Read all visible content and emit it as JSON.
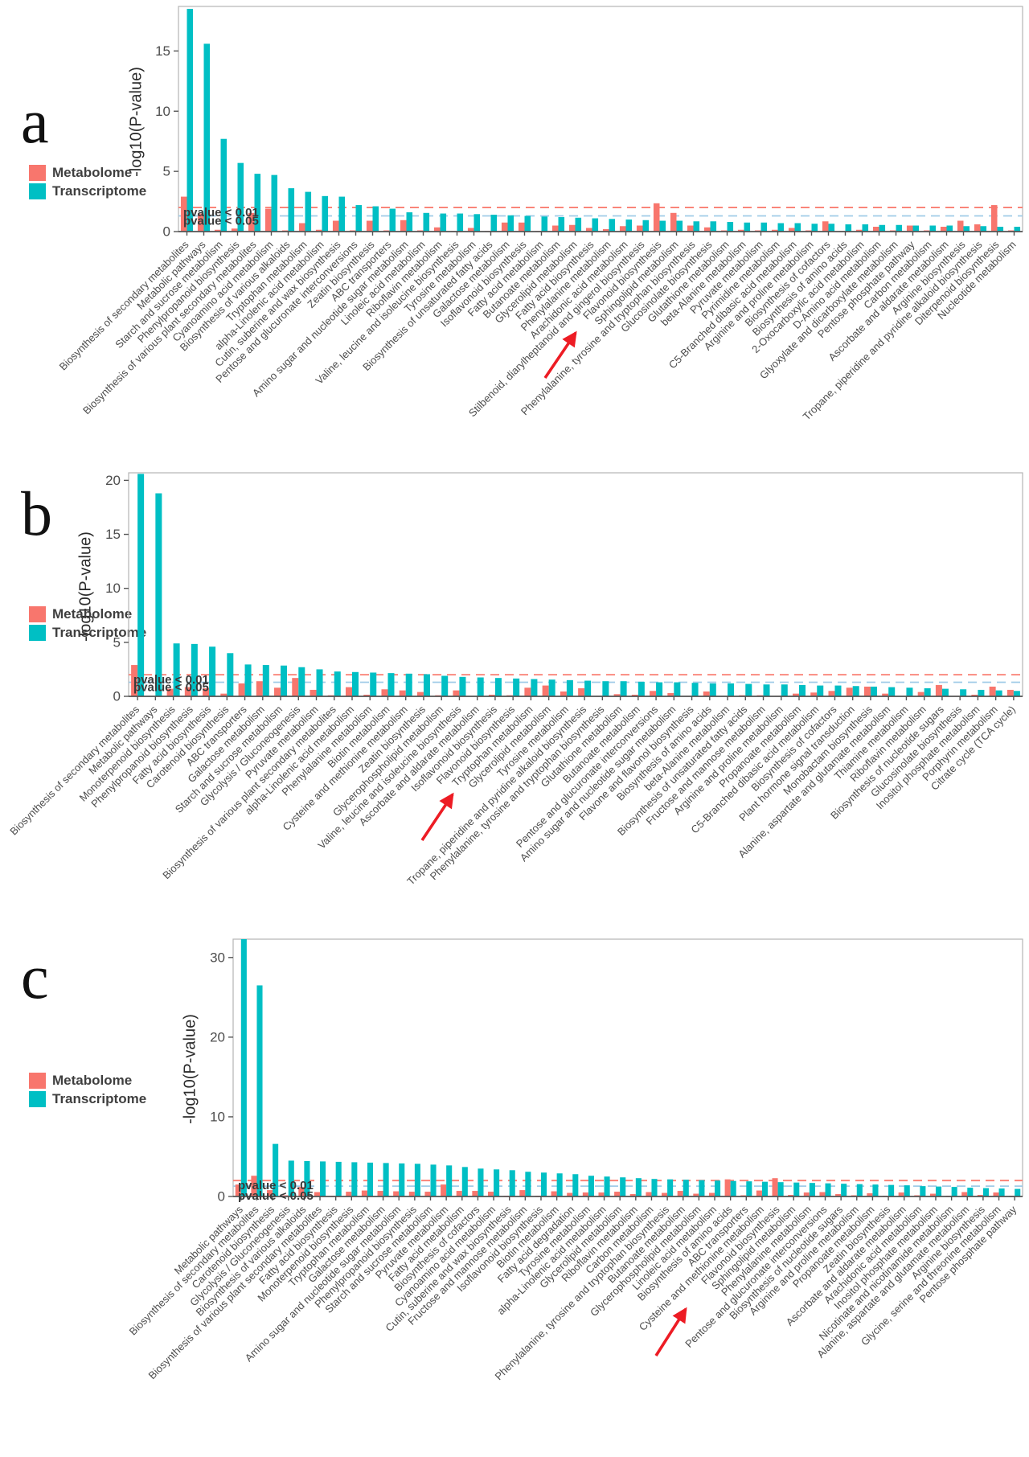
{
  "figure": {
    "background": "#ffffff"
  },
  "colors": {
    "metabolome": "#F8766D",
    "transcriptome": "#00BFC4",
    "threshold_red": "#FA7E72",
    "threshold_blue": "#A0CBE8",
    "arrow": "#ED1C24",
    "axis": "#555555",
    "panel_border": "#B5B5B5",
    "tick_text": "#4D4D4D"
  },
  "legend": {
    "metabolome": "Metabolome",
    "transcriptome": "Transcriptome"
  },
  "thresholds": [
    {
      "label": "pvalue < 0.01",
      "value": 2.0,
      "color_key": "threshold_red"
    },
    {
      "label": "pvalue < 0.05",
      "value": 1.301,
      "color_key": "threshold_blue"
    }
  ],
  "chart_data": [
    {
      "panel": "a",
      "type": "bar",
      "title": "",
      "xlabel": "",
      "ylabel": "-log10(P-value)",
      "ylim": [
        0,
        18.7
      ],
      "yticks": [
        0,
        5,
        10,
        15
      ],
      "grid": false,
      "legend_position": "left",
      "arrow_target": "Flavonoid biosynthesis",
      "categories": [
        "Biosynthesis of secondary metabolites",
        "Metabolic pathways",
        "Starch and sucrose metabolism",
        "Phenylpropanoid biosynthesis",
        "Biosynthesis of various plant secondary metabolites",
        "Cyanoamino acid metabolism",
        "Biosynthesis of various alkaloids",
        "Tryptophan metabolism",
        "alpha-Linolenic acid metabolism",
        "Cutin, suberine and wax biosynthesis",
        "Pentose and glucuronate interconversions",
        "Zeatin biosynthesis",
        "ABC transporters",
        "Amino sugar and nucleotide sugar metabolism",
        "Linoleic acid metabolism",
        "Riboflavin metabolism",
        "Valine, leucine and isoleucine biosynthesis",
        "Tyrosine metabolism",
        "Biosynthesis of unsaturated fatty acids",
        "Galactose metabolism",
        "Isoflavonoid biosynthesis",
        "Fatty acid metabolism",
        "Butanoate metabolism",
        "Glycerolipid metabolism",
        "Fatty acid biosynthesis",
        "Phenylalanine metabolism",
        "Arachidonic acid metabolism",
        "Stilbenoid, diarylheptanoid and gingerol biosynthesis",
        "Flavonoid biosynthesis",
        "Sphingolipid metabolism",
        "Phenylalanine, tyrosine and tryptophan biosynthesis",
        "Glucosinolate biosynthesis",
        "Glutathione metabolism",
        "beta-Alanine metabolism",
        "Pyruvate metabolism",
        "Pyrimidine metabolism",
        "C5-Branched dibasic acid metabolism",
        "Arginine and proline metabolism",
        "Biosynthesis of cofactors",
        "Biosynthesis of amino acids",
        "2-Oxocarboxylic acid metabolism",
        "D-Amino acid metabolism",
        "Glyoxylate and dicarboxylate metabolism",
        "Pentose phosphate pathway",
        "Carbon metabolism",
        "Ascorbate and aldarate metabolism",
        "Arginine biosynthesis",
        "Tropane, piperidine and pyridine alkaloid biosynthesis",
        "Diterpenoid biosynthesis",
        "Nucleotide metabolism"
      ],
      "series": [
        {
          "name": "Metabolome",
          "values": [
            2.9,
            1.5,
            0.15,
            0.25,
            1.55,
            1.9,
            0.1,
            0.7,
            0.15,
            0.9,
            0.1,
            0.9,
            0.1,
            0.95,
            0.1,
            0.35,
            0.05,
            0.3,
            0.05,
            0.75,
            0.75,
            0.05,
            0.5,
            0.55,
            0.3,
            0.2,
            0.45,
            0.5,
            2.35,
            1.55,
            0.5,
            0.35,
            0.1,
            0.15,
            0.1,
            0.15,
            0.3,
            0.1,
            0.85,
            0.05,
            0.15,
            0.4,
            0.1,
            0.5,
            0.1,
            0.4,
            0.9,
            0.6,
            2.2,
            0.1
          ]
        },
        {
          "name": "Transcriptome",
          "values": [
            18.5,
            15.6,
            7.7,
            5.7,
            4.8,
            4.7,
            3.6,
            3.3,
            2.95,
            2.9,
            2.2,
            2.1,
            1.9,
            1.6,
            1.55,
            1.5,
            1.5,
            1.45,
            1.4,
            1.35,
            1.3,
            1.25,
            1.2,
            1.15,
            1.1,
            1.05,
            1.0,
            0.95,
            0.9,
            0.9,
            0.85,
            0.85,
            0.8,
            0.75,
            0.75,
            0.7,
            0.7,
            0.65,
            0.65,
            0.6,
            0.6,
            0.55,
            0.55,
            0.5,
            0.5,
            0.5,
            0.45,
            0.45,
            0.4,
            0.4
          ]
        }
      ]
    },
    {
      "panel": "b",
      "type": "bar",
      "title": "",
      "xlabel": "",
      "ylabel": "-log10(P-value)",
      "ylim": [
        0,
        20.7
      ],
      "yticks": [
        0,
        5,
        10,
        15,
        20
      ],
      "grid": false,
      "legend_position": "left",
      "arrow_target": "Flavonoid biosynthesis",
      "categories": [
        "Biosynthesis of secondary metabolites",
        "Metabolic pathways",
        "Monoterpenoid biosynthesis",
        "Phenylpropanoid biosynthesis",
        "Fatty acid biosynthesis",
        "Carotenoid biosynthesis",
        "ABC transporters",
        "Galactose metabolism",
        "Starch and sucrose metabolism",
        "Glycolysis / Gluconeogenesis",
        "Pyruvate metabolism",
        "Biosynthesis of various plant secondary metabolites",
        "alpha-Linolenic acid metabolism",
        "Phenylalanine metabolism",
        "Biotin metabolism",
        "Cysteine and methionine metabolism",
        "Zeatin biosynthesis",
        "Glycerophospholipid metabolism",
        "Valine, leucine and isoleucine biosynthesis",
        "Ascorbate and aldarate metabolism",
        "Isoflavonoid biosynthesis",
        "Flavonoid biosynthesis",
        "Tryptophan metabolism",
        "Glycerolipid metabolism",
        "Tyrosine metabolism",
        "Tropane, piperidine and pyridine alkaloid biosynthesis",
        "Phenylalanine, tyrosine and tryptophan biosynthesis",
        "Glutathione metabolism",
        "Butanoate metabolism",
        "Pentose and glucuronate interconversions",
        "Amino sugar and nucleotide sugar metabolism",
        "Flavone and flavonol biosynthesis",
        "Biosynthesis of amino acids",
        "beta-Alanine metabolism",
        "Biosynthesis of unsaturated fatty acids",
        "Fructose and mannose metabolism",
        "Arginine and proline metabolism",
        "Propanoate metabolism",
        "C5-Branched dibasic acid metabolism",
        "Biosynthesis of cofactors",
        "Plant hormone signal transduction",
        "Monobactam biosynthesis",
        "Alanine, aspartate and glutamate metabolism",
        "Thiamine metabolism",
        "Riboflavin metabolism",
        "Biosynthesis of nucleotide sugars",
        "Glucosinolate biosynthesis",
        "Inositol phosphate metabolism",
        "Porphyrin metabolism",
        "Citrate cycle (TCA cycle)"
      ],
      "series": [
        {
          "name": "Metabolome",
          "values": [
            2.9,
            0.05,
            0.7,
            0.85,
            0.75,
            0.25,
            1.2,
            1.4,
            0.8,
            1.7,
            0.6,
            0.1,
            0.85,
            0.15,
            0.65,
            0.55,
            0.4,
            0.1,
            0.55,
            0.05,
            0.15,
            0.1,
            0.8,
            1.0,
            0.45,
            0.75,
            0.05,
            0.2,
            0.15,
            0.5,
            0.3,
            0.05,
            0.45,
            0.05,
            0.1,
            0.1,
            0.05,
            0.25,
            0.35,
            0.5,
            0.8,
            0.9,
            0.25,
            0.05,
            0.4,
            1.05,
            0.05,
            0.15,
            0.9,
            0.6
          ]
        },
        {
          "name": "Transcriptome",
          "values": [
            20.6,
            18.8,
            4.9,
            4.85,
            4.6,
            4.0,
            2.95,
            2.9,
            2.85,
            2.7,
            2.5,
            2.3,
            2.25,
            2.2,
            2.15,
            2.1,
            2.05,
            1.9,
            1.8,
            1.75,
            1.7,
            1.65,
            1.6,
            1.55,
            1.5,
            1.45,
            1.4,
            1.4,
            1.35,
            1.3,
            1.3,
            1.25,
            1.2,
            1.2,
            1.15,
            1.1,
            1.1,
            1.05,
            1.0,
            1.0,
            0.95,
            0.9,
            0.85,
            0.8,
            0.75,
            0.7,
            0.65,
            0.6,
            0.55,
            0.5
          ]
        }
      ]
    },
    {
      "panel": "c",
      "type": "bar",
      "title": "",
      "xlabel": "",
      "ylabel": "-log10(P-value)",
      "ylim": [
        0,
        32.3
      ],
      "yticks": [
        0,
        10,
        20,
        30
      ],
      "grid": false,
      "legend_position": "left",
      "arrow_target": "Flavonoid biosynthesis",
      "categories": [
        "Metabolic pathways",
        "Biosynthesis of secondary metabolites",
        "Carotenoid biosynthesis",
        "Glycolysis / Gluconeogenesis",
        "Biosynthesis of various alkaloids",
        "Biosynthesis of various plant secondary metabolites",
        "Fatty acid biosynthesis",
        "Monoterpenoid biosynthesis",
        "Tryptophan metabolism",
        "Galactose metabolism",
        "Amino sugar and nucleotide sugar metabolism",
        "Phenylpropanoid biosynthesis",
        "Starch and sucrose metabolism",
        "Pyruvate metabolism",
        "Fatty acid metabolism",
        "Biosynthesis of cofactors",
        "Cyanoamino acid metabolism",
        "Cutin, suberine and wax biosynthesis",
        "Fructose and mannose metabolism",
        "Isoflavonoid biosynthesis",
        "Biotin metabolism",
        "Fatty acid degradation",
        "Tyrosine metabolism",
        "alpha-Linolenic acid metabolism",
        "Glycerolipid metabolism",
        "Riboflavin metabolism",
        "Carbon metabolism",
        "Phenylalanine, tyrosine and tryptophan biosynthesis",
        "Butanoate metabolism",
        "Glycerophospholipid metabolism",
        "Linoleic acid metabolism",
        "Biosynthesis of amino acids",
        "ABC transporters",
        "Cysteine and methionine metabolism",
        "Flavonoid biosynthesis",
        "Sphingolipid metabolism",
        "Phenylalanine metabolism",
        "Pentose and glucuronate interconversions",
        "Biosynthesis of nucleotide sugars",
        "Arginine and proline metabolism",
        "Propanoate metabolism",
        "Zeatin biosynthesis",
        "Ascorbate and aldarate metabolism",
        "Arachidonic acid metabolism",
        "Inositol phosphate metabolism",
        "Nicotinate and nicotinamide metabolism",
        "Alanine, aspartate and glutamate metabolism",
        "Arginine biosynthesis",
        "Glycine, serine and threonine metabolism",
        "Pentose phosphate pathway"
      ],
      "series": [
        {
          "name": "Metabolome",
          "values": [
            1.5,
            2.6,
            0.8,
            0.15,
            1.2,
            0.55,
            0.1,
            0.6,
            0.75,
            0.7,
            0.65,
            0.6,
            0.6,
            1.5,
            0.7,
            0.7,
            0.6,
            0.1,
            0.8,
            0.1,
            0.65,
            0.45,
            0.5,
            0.5,
            0.6,
            0.3,
            0.55,
            0.45,
            0.7,
            0.35,
            0.45,
            2.15,
            0.15,
            0.75,
            2.3,
            0.2,
            0.5,
            0.55,
            0.3,
            0.15,
            0.4,
            0.1,
            0.5,
            0.15,
            0.35,
            0.1,
            0.55,
            0.2,
            0.5,
            0.1
          ]
        },
        {
          "name": "Transcriptome",
          "values": [
            32.5,
            26.5,
            6.6,
            4.5,
            4.45,
            4.4,
            4.35,
            4.3,
            4.25,
            4.2,
            4.15,
            4.1,
            4.0,
            3.9,
            3.7,
            3.5,
            3.4,
            3.3,
            3.1,
            3.0,
            2.9,
            2.8,
            2.6,
            2.5,
            2.4,
            2.3,
            2.2,
            2.15,
            2.1,
            2.05,
            2.0,
            1.95,
            1.9,
            1.85,
            1.8,
            1.75,
            1.7,
            1.65,
            1.6,
            1.55,
            1.5,
            1.45,
            1.4,
            1.3,
            1.25,
            1.2,
            1.1,
            1.05,
            1.0,
            0.95
          ]
        }
      ]
    }
  ]
}
